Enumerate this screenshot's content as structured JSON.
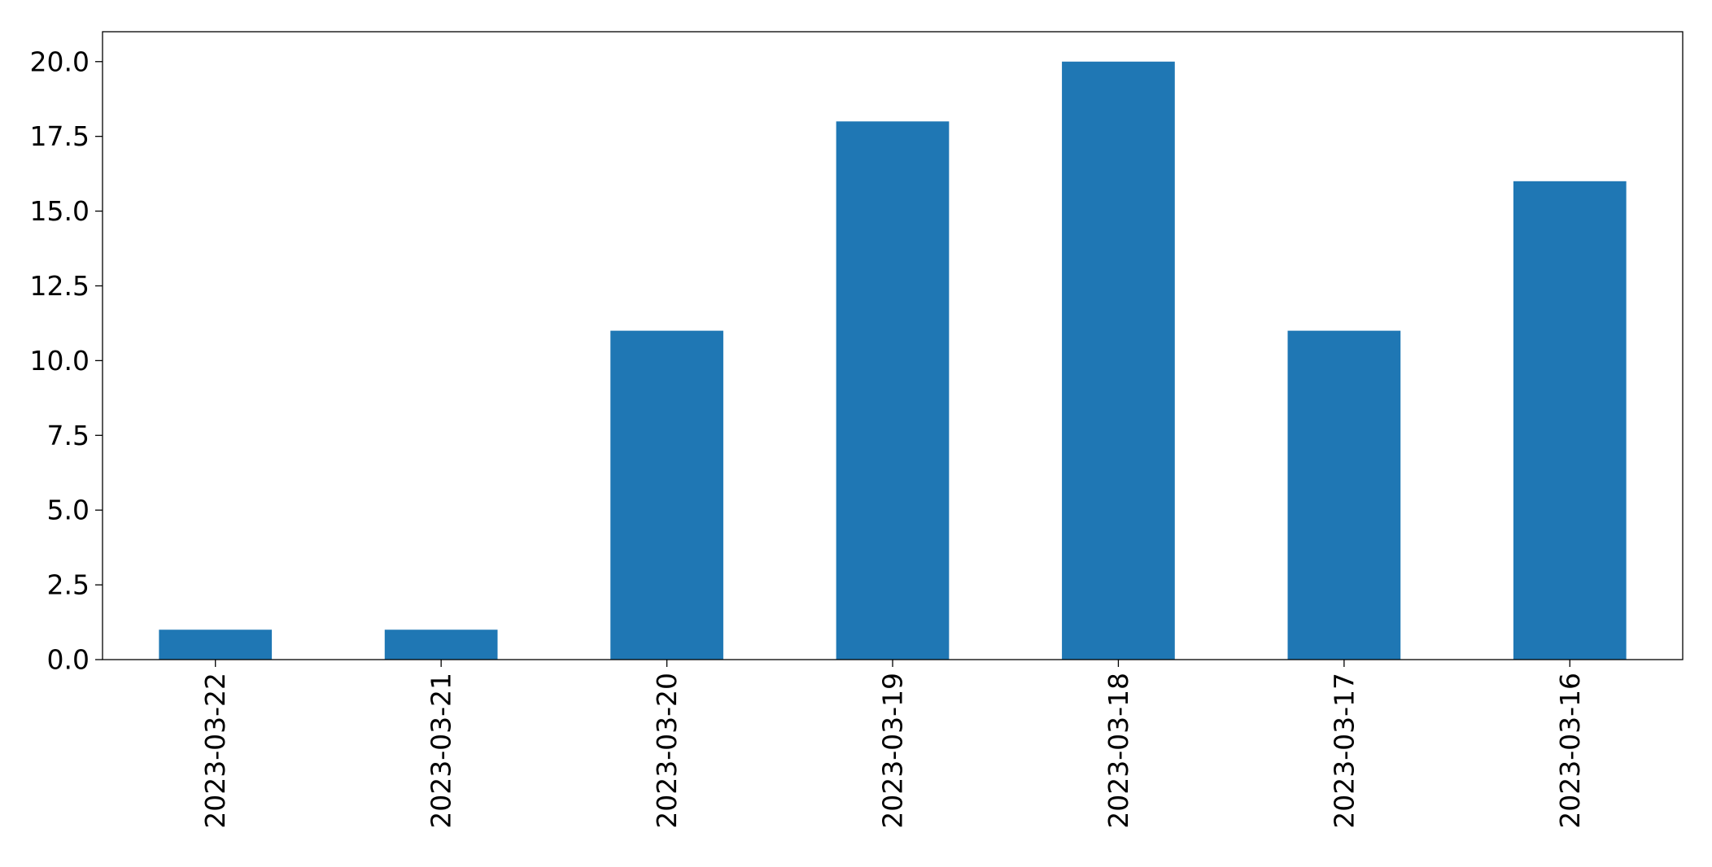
{
  "chart_data": {
    "type": "bar",
    "title": "",
    "xlabel": "",
    "ylabel": "",
    "categories": [
      "2023-03-22",
      "2023-03-21",
      "2023-03-20",
      "2023-03-19",
      "2023-03-18",
      "2023-03-17",
      "2023-03-16"
    ],
    "values": [
      1,
      1,
      11,
      18,
      20,
      11,
      16
    ],
    "ylim": [
      0,
      21
    ],
    "yticks": [
      0.0,
      2.5,
      5.0,
      7.5,
      10.0,
      12.5,
      15.0,
      17.5,
      20.0
    ],
    "ytick_labels": [
      "0.0",
      "2.5",
      "5.0",
      "7.5",
      "10.0",
      "12.5",
      "15.0",
      "17.5",
      "20.0"
    ],
    "bar_color": "#1f77b4",
    "grid": false,
    "legend": "none"
  }
}
